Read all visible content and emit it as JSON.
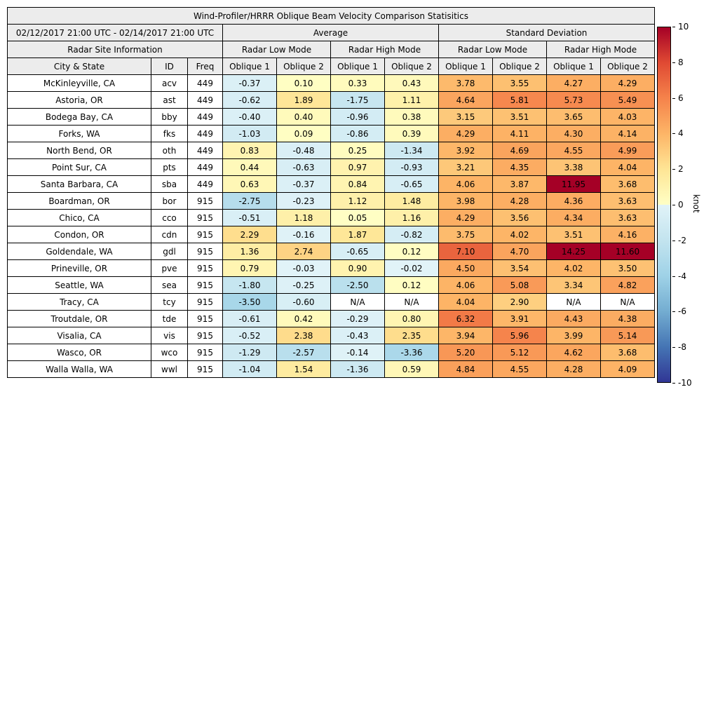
{
  "chart_data": {
    "type": "table",
    "title": "Wind-Profiler/HRRR Oblique Beam Velocity Comparison Statisitics",
    "period": "02/12/2017 21:00 UTC - 02/14/2017 21:00 UTC",
    "groups": {
      "average": "Average",
      "std_dev": "Standard Deviation",
      "site_info": "Radar Site Information",
      "low_mode": "Radar Low Mode",
      "high_mode": "Radar High Mode"
    },
    "columns": {
      "city": "City & State",
      "id": "ID",
      "freq": "Freq",
      "oblique1": "Oblique 1",
      "oblique2": "Oblique 2"
    },
    "rows": [
      {
        "city": "McKinleyville, CA",
        "id": "acv",
        "freq": "449",
        "values": [
          "-0.37",
          "0.10",
          "0.33",
          "0.43",
          "3.78",
          "3.55",
          "4.27",
          "4.29"
        ]
      },
      {
        "city": "Astoria, OR",
        "id": "ast",
        "freq": "449",
        "values": [
          "-0.62",
          "1.89",
          "-1.75",
          "1.11",
          "4.64",
          "5.81",
          "5.73",
          "5.49"
        ]
      },
      {
        "city": "Bodega Bay, CA",
        "id": "bby",
        "freq": "449",
        "values": [
          "-0.40",
          "0.40",
          "-0.96",
          "0.38",
          "3.15",
          "3.51",
          "3.65",
          "4.03"
        ]
      },
      {
        "city": "Forks, WA",
        "id": "fks",
        "freq": "449",
        "values": [
          "-1.03",
          "0.09",
          "-0.86",
          "0.39",
          "4.29",
          "4.11",
          "4.30",
          "4.14"
        ]
      },
      {
        "city": "North Bend, OR",
        "id": "oth",
        "freq": "449",
        "values": [
          "0.83",
          "-0.48",
          "0.25",
          "-1.34",
          "3.92",
          "4.69",
          "4.55",
          "4.99"
        ]
      },
      {
        "city": "Point Sur, CA",
        "id": "pts",
        "freq": "449",
        "values": [
          "0.44",
          "-0.63",
          "0.97",
          "-0.93",
          "3.21",
          "4.35",
          "3.38",
          "4.04"
        ]
      },
      {
        "city": "Santa Barbara, CA",
        "id": "sba",
        "freq": "449",
        "values": [
          "0.63",
          "-0.37",
          "0.84",
          "-0.65",
          "4.06",
          "3.87",
          "11.95",
          "3.68"
        ]
      },
      {
        "city": "Boardman, OR",
        "id": "bor",
        "freq": "915",
        "values": [
          "-2.75",
          "-0.23",
          "1.12",
          "1.48",
          "3.98",
          "4.28",
          "4.36",
          "3.63"
        ]
      },
      {
        "city": "Chico, CA",
        "id": "cco",
        "freq": "915",
        "values": [
          "-0.51",
          "1.18",
          "0.05",
          "1.16",
          "4.29",
          "3.56",
          "4.34",
          "3.63"
        ]
      },
      {
        "city": "Condon, OR",
        "id": "cdn",
        "freq": "915",
        "values": [
          "2.29",
          "-0.16",
          "1.87",
          "-0.82",
          "3.75",
          "4.02",
          "3.51",
          "4.16"
        ]
      },
      {
        "city": "Goldendale, WA",
        "id": "gdl",
        "freq": "915",
        "values": [
          "1.36",
          "2.74",
          "-0.65",
          "0.12",
          "7.10",
          "4.70",
          "14.25",
          "11.60"
        ]
      },
      {
        "city": "Prineville, OR",
        "id": "pve",
        "freq": "915",
        "values": [
          "0.79",
          "-0.03",
          "0.90",
          "-0.02",
          "4.50",
          "3.54",
          "4.02",
          "3.50"
        ]
      },
      {
        "city": "Seattle, WA",
        "id": "sea",
        "freq": "915",
        "values": [
          "-1.80",
          "-0.25",
          "-2.50",
          "0.12",
          "4.06",
          "5.08",
          "3.34",
          "4.82"
        ]
      },
      {
        "city": "Tracy, CA",
        "id": "tcy",
        "freq": "915",
        "values": [
          "-3.50",
          "-0.60",
          "N/A",
          "N/A",
          "4.04",
          "2.90",
          "N/A",
          "N/A"
        ]
      },
      {
        "city": "Troutdale, OR",
        "id": "tde",
        "freq": "915",
        "values": [
          "-0.61",
          "0.42",
          "-0.29",
          "0.80",
          "6.32",
          "3.91",
          "4.43",
          "4.38"
        ]
      },
      {
        "city": "Visalia, CA",
        "id": "vis",
        "freq": "915",
        "values": [
          "-0.52",
          "2.38",
          "-0.43",
          "2.35",
          "3.94",
          "5.96",
          "3.99",
          "5.14"
        ]
      },
      {
        "city": "Wasco, OR",
        "id": "wco",
        "freq": "915",
        "values": [
          "-1.29",
          "-2.57",
          "-0.14",
          "-3.36",
          "5.20",
          "5.12",
          "4.62",
          "3.68"
        ]
      },
      {
        "city": "Walla Walla, WA",
        "id": "wwl",
        "freq": "915",
        "values": [
          "-1.04",
          "1.54",
          "-1.36",
          "0.59",
          "4.84",
          "4.55",
          "4.28",
          "4.09"
        ]
      }
    ],
    "colorbar": {
      "label": "knot",
      "min": -10,
      "max": 10,
      "ticks": [
        "10",
        "8",
        "6",
        "4",
        "2",
        "0",
        "-2",
        "-4",
        "-6",
        "-8",
        "-10"
      ],
      "colormap": {
        "positive_anchors": [
          "#ffffc5",
          "#fee595",
          "#fdb567",
          "#f5834b",
          "#e04a33",
          "#a50026"
        ],
        "negative_anchors": [
          "#e1f3f8",
          "#c3e4ef",
          "#9fd2e7",
          "#74add1",
          "#4575b4",
          "#313695"
        ],
        "na_color": "#ffffff"
      }
    }
  }
}
